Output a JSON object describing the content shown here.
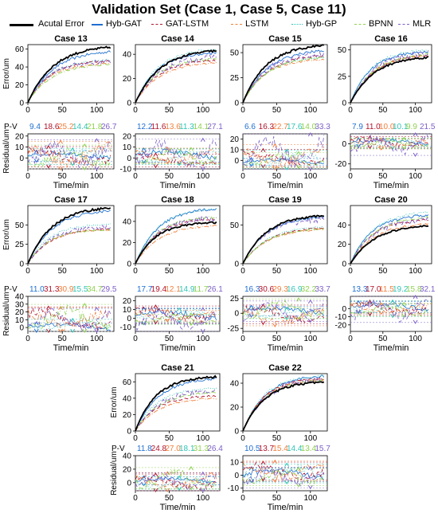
{
  "figure": {
    "title": "Validation Set (Case 1, Case 5, Case 11)",
    "legend": [
      {
        "name": "Acutal Error",
        "color": "#000000",
        "style": "solid",
        "width": 3
      },
      {
        "name": "Hyb-GAT",
        "color": "#1f6fd0",
        "style": "solid",
        "width": 1
      },
      {
        "name": "GAT-LSTM",
        "color": "#b0132b",
        "style": "dashed",
        "width": 1
      },
      {
        "name": "LSTM",
        "color": "#f07f3c",
        "style": "dashdot",
        "width": 1
      },
      {
        "name": "Hyb-GP",
        "color": "#2ec4b6",
        "style": "dotted",
        "width": 1
      },
      {
        "name": "BPNN",
        "color": "#8fd14f",
        "style": "dashdot",
        "width": 1
      },
      {
        "name": "MLR",
        "color": "#7d5fc7",
        "style": "dashed",
        "width": 1
      }
    ],
    "axis_labels": {
      "error_y": "Error/um",
      "residual_y": "Residual/um",
      "x": "Time/min",
      "pv_label": "P-V"
    }
  },
  "chart_data": [
    {
      "type": "line",
      "case": "Case 13",
      "x_range": [
        0,
        125
      ],
      "x_ticks": [
        0,
        50,
        100
      ],
      "error_y_range": [
        0,
        65
      ],
      "error_y_ticks": [
        0,
        20,
        40,
        60
      ],
      "final_values": {
        "Acutal Error": 62,
        "Hyb-GAT": 57,
        "GAT-LSTM": 47,
        "LSTM": 44,
        "Hyb-GP": 48,
        "BPNN": 43,
        "MLR": 46
      },
      "pv": [
        9.4,
        18.6,
        25.2,
        14.4,
        21.8,
        26.7
      ],
      "residual_y_range": [
        -10,
        22
      ],
      "residual_y_ticks": [
        0,
        10,
        20
      ]
    },
    {
      "type": "line",
      "case": "Case 14",
      "x_range": [
        0,
        125
      ],
      "x_ticks": [
        0,
        50,
        100
      ],
      "error_y_range": [
        0,
        48
      ],
      "error_y_ticks": [
        0,
        20,
        40
      ],
      "final_values": {
        "Acutal Error": 43,
        "Hyb-GAT": 41,
        "GAT-LSTM": 35,
        "LSTM": 33,
        "Hyb-GP": 44,
        "BPNN": 36,
        "MLR": 38
      },
      "pv": [
        12.2,
        11.6,
        13.6,
        11.3,
        14.1,
        27.1
      ],
      "residual_y_range": [
        -10,
        22
      ],
      "residual_y_ticks": [
        -10,
        0,
        10,
        20
      ]
    },
    {
      "type": "line",
      "case": "Case 15",
      "x_range": [
        0,
        125
      ],
      "x_ticks": [
        0,
        50,
        100
      ],
      "error_y_range": [
        0,
        58
      ],
      "error_y_ticks": [
        0,
        25,
        50
      ],
      "final_values": {
        "Acutal Error": 57,
        "Hyb-GAT": 52,
        "GAT-LSTM": 47,
        "LSTM": 43,
        "Hyb-GP": 45,
        "BPNN": 45,
        "MLR": 48
      },
      "pv": [
        6.6,
        16.3,
        22.7,
        17.6,
        14.0,
        33.3
      ],
      "residual_y_range": [
        -8,
        25
      ],
      "residual_y_ticks": [
        0,
        10,
        20
      ]
    },
    {
      "type": "line",
      "case": "Case 16",
      "x_range": [
        0,
        125
      ],
      "x_ticks": [
        0,
        50,
        100
      ],
      "error_y_range": [
        0,
        55
      ],
      "error_y_ticks": [
        0,
        25,
        50
      ],
      "final_values": {
        "Acutal Error": 43,
        "Hyb-GAT": 48,
        "GAT-LSTM": 45,
        "LSTM": 45,
        "Hyb-GP": 50,
        "BPNN": 46,
        "MLR": 47
      },
      "pv": [
        7.9,
        11.0,
        10.0,
        10.1,
        9.9,
        21.5
      ],
      "residual_y_range": [
        -25,
        10
      ],
      "residual_y_ticks": [
        -20,
        0
      ]
    },
    {
      "type": "line",
      "case": "Case 17",
      "x_range": [
        0,
        125
      ],
      "x_ticks": [
        0,
        50,
        100
      ],
      "error_y_range": [
        0,
        75
      ],
      "error_y_ticks": [
        0,
        25,
        50
      ],
      "final_values": {
        "Acutal Error": 72,
        "Hyb-GAT": 68,
        "GAT-LSTM": 45,
        "LSTM": 44,
        "Hyb-GP": 51,
        "BPNN": 44,
        "MLR": 47
      },
      "pv": [
        11.0,
        31.3,
        30.9,
        15.5,
        34.7,
        29.5
      ],
      "residual_y_range": [
        -5,
        40
      ],
      "residual_y_ticks": [
        0,
        10,
        20,
        30,
        40
      ]
    },
    {
      "type": "line",
      "case": "Case 18",
      "x_range": [
        0,
        125
      ],
      "x_ticks": [
        0,
        50,
        100
      ],
      "error_y_range": [
        0,
        55
      ],
      "error_y_ticks": [
        0,
        20,
        40
      ],
      "final_values": {
        "Acutal Error": 39,
        "Hyb-GAT": 52,
        "GAT-LSTM": 42,
        "LSTM": 36,
        "Hyb-GP": 52,
        "BPNN": 44,
        "MLR": 43
      },
      "pv": [
        17.7,
        19.4,
        12.1,
        14.9,
        11.7,
        26.1
      ],
      "residual_y_range": [
        -15,
        25
      ],
      "residual_y_ticks": [
        -10,
        0,
        10,
        20
      ]
    },
    {
      "type": "line",
      "case": "Case 19",
      "x_range": [
        0,
        125
      ],
      "x_ticks": [
        0,
        50,
        100
      ],
      "error_y_range": [
        0,
        75
      ],
      "error_y_ticks": [
        0,
        50
      ],
      "final_values": {
        "Acutal Error": 62,
        "Hyb-GAT": 60,
        "GAT-LSTM": 46,
        "LSTM": 44,
        "Hyb-GP": 48,
        "BPNN": 45,
        "MLR": 57
      },
      "pv": [
        16.3,
        30.6,
        29.3,
        16.9,
        32.2,
        33.7
      ],
      "residual_y_range": [
        -30,
        28
      ],
      "residual_y_ticks": [
        -25,
        0,
        25
      ]
    },
    {
      "type": "line",
      "case": "Case 20",
      "x_range": [
        0,
        125
      ],
      "x_ticks": [
        0,
        50,
        100
      ],
      "error_y_range": [
        0,
        60
      ],
      "error_y_ticks": [
        0,
        20,
        40
      ],
      "final_values": {
        "Acutal Error": 39,
        "Hyb-GAT": 50,
        "GAT-LSTM": 45,
        "LSTM": 41,
        "Hyb-GP": 53,
        "BPNN": 48,
        "MLR": 45
      },
      "pv": [
        13.3,
        17.0,
        11.5,
        19.2,
        15.8,
        32.1
      ],
      "residual_y_range": [
        -28,
        15
      ],
      "residual_y_ticks": [
        -20,
        -10,
        0
      ]
    },
    {
      "type": "line",
      "case": "Case 21",
      "x_range": [
        0,
        125
      ],
      "x_ticks": [
        0,
        50,
        100
      ],
      "error_y_range": [
        0,
        70
      ],
      "error_y_ticks": [
        0,
        20,
        40,
        60
      ],
      "final_values": {
        "Acutal Error": 66,
        "Hyb-GAT": 64,
        "GAT-LSTM": 43,
        "LSTM": 40,
        "Hyb-GP": 52,
        "BPNN": 47,
        "MLR": 50
      },
      "pv": [
        11.8,
        24.8,
        27.0,
        18.1,
        31.3,
        26.4
      ],
      "residual_y_range": [
        -12,
        40
      ],
      "residual_y_ticks": [
        0,
        20,
        40
      ]
    },
    {
      "type": "line",
      "case": "Case 22",
      "x_range": [
        0,
        125
      ],
      "x_ticks": [
        0,
        50,
        100
      ],
      "error_y_range": [
        0,
        48
      ],
      "error_y_ticks": [
        0,
        20,
        40
      ],
      "final_values": {
        "Acutal Error": 41,
        "Hyb-GAT": 46,
        "GAT-LSTM": 44,
        "LSTM": 43,
        "Hyb-GP": 46,
        "BPNN": 43,
        "MLR": 44
      },
      "pv": [
        10.5,
        13.7,
        15.4,
        14.4,
        13.4,
        15.7
      ],
      "residual_y_range": [
        -12,
        15
      ],
      "residual_y_ticks": [
        -10,
        0,
        10
      ]
    }
  ]
}
